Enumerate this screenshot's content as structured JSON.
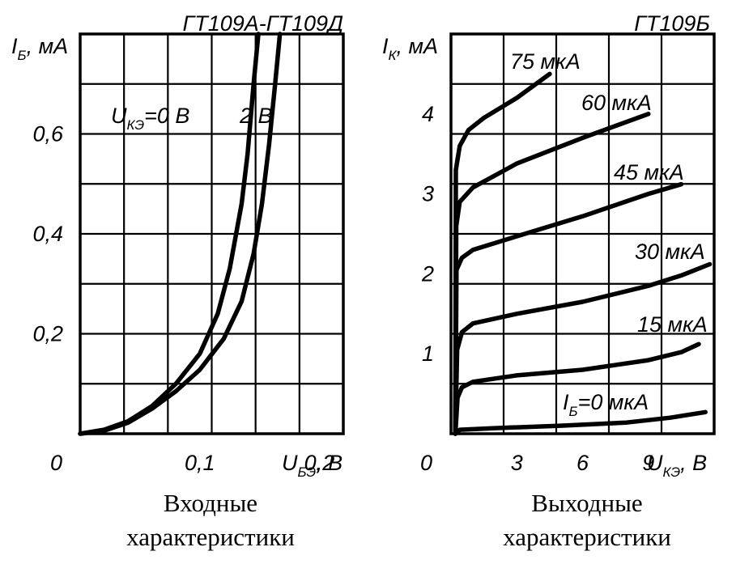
{
  "chart_data": [
    {
      "type": "line",
      "title": "ГТ109А-ГТ109Д",
      "caption": [
        "Входные",
        "характеристики"
      ],
      "ylabel": {
        "main": "I",
        "sub": "Б",
        "unit": ", мА"
      },
      "xlabel": {
        "main": "U",
        "sub": "БЭ",
        "unit": ", В"
      },
      "xlim": [
        0,
        0.22
      ],
      "ylim": [
        0,
        0.8
      ],
      "grid": true,
      "x_ticks": [
        {
          "v": 0,
          "label": "0"
        },
        {
          "v": 0.1,
          "label": "0,1"
        },
        {
          "v": 0.2,
          "label": "0,2"
        }
      ],
      "y_ticks": [
        {
          "v": 0.2,
          "label": "0,2"
        },
        {
          "v": 0.4,
          "label": "0,4"
        },
        {
          "v": 0.6,
          "label": "0,6"
        }
      ],
      "series": [
        {
          "name": "U КЭ = 0 В",
          "points": [
            [
              0,
              0
            ],
            [
              0.02,
              0.008
            ],
            [
              0.04,
              0.025
            ],
            [
              0.06,
              0.055
            ],
            [
              0.08,
              0.1
            ],
            [
              0.1,
              0.16
            ],
            [
              0.115,
              0.24
            ],
            [
              0.125,
              0.33
            ],
            [
              0.135,
              0.46
            ],
            [
              0.14,
              0.56
            ],
            [
              0.145,
              0.7
            ],
            [
              0.149,
              0.8
            ]
          ]
        },
        {
          "name": "2 В",
          "points": [
            [
              0,
              0
            ],
            [
              0.02,
              0.006
            ],
            [
              0.04,
              0.022
            ],
            [
              0.06,
              0.05
            ],
            [
              0.08,
              0.085
            ],
            [
              0.1,
              0.128
            ],
            [
              0.12,
              0.19
            ],
            [
              0.135,
              0.265
            ],
            [
              0.145,
              0.36
            ],
            [
              0.152,
              0.46
            ],
            [
              0.158,
              0.58
            ],
            [
              0.163,
              0.7
            ],
            [
              0.167,
              0.8
            ]
          ]
        }
      ],
      "annotations": [
        {
          "main": "U",
          "sub": "КЭ",
          "text": "=0 В"
        },
        {
          "text": "2 В"
        }
      ]
    },
    {
      "type": "line",
      "title": "ГТ109Б",
      "caption": [
        "Выходные",
        "характеристики"
      ],
      "ylabel": {
        "main": "I",
        "sub": "К",
        "unit": ", мА"
      },
      "xlabel": {
        "main": "U",
        "sub": "КЭ",
        "unit": ", В"
      },
      "xlim": [
        0,
        12
      ],
      "ylim": [
        0,
        5
      ],
      "grid": true,
      "x_ticks": [
        {
          "v": 0,
          "label": "0"
        },
        {
          "v": 3,
          "label": "3"
        },
        {
          "v": 6,
          "label": "6"
        },
        {
          "v": 9,
          "label": "9"
        }
      ],
      "y_ticks": [
        {
          "v": 1,
          "label": "1"
        },
        {
          "v": 2,
          "label": "2"
        },
        {
          "v": 3,
          "label": "3"
        },
        {
          "v": 4,
          "label": "4"
        }
      ],
      "series": [
        {
          "name": "I Б = 0 мкА",
          "points": [
            [
              0.2,
              0
            ],
            [
              0.4,
              0.05
            ],
            [
              2,
              0.07
            ],
            [
              5,
              0.1
            ],
            [
              8,
              0.14
            ],
            [
              10,
              0.2
            ],
            [
              11.6,
              0.27
            ]
          ]
        },
        {
          "name": "15 мкА",
          "points": [
            [
              0.2,
              0
            ],
            [
              0.3,
              0.45
            ],
            [
              0.5,
              0.58
            ],
            [
              1,
              0.65
            ],
            [
              3,
              0.73
            ],
            [
              6,
              0.8
            ],
            [
              9,
              0.92
            ],
            [
              10.5,
              1.02
            ],
            [
              11.3,
              1.12
            ]
          ]
        },
        {
          "name": "30 мкА",
          "points": [
            [
              0.2,
              0
            ],
            [
              0.28,
              1.05
            ],
            [
              0.5,
              1.27
            ],
            [
              1,
              1.38
            ],
            [
              3,
              1.5
            ],
            [
              6,
              1.65
            ],
            [
              9,
              1.85
            ],
            [
              10.5,
              1.98
            ],
            [
              11.8,
              2.12
            ]
          ]
        },
        {
          "name": "45 мкА",
          "points": [
            [
              0.2,
              0
            ],
            [
              0.25,
              2.05
            ],
            [
              0.5,
              2.2
            ],
            [
              1,
              2.3
            ],
            [
              3,
              2.47
            ],
            [
              6,
              2.72
            ],
            [
              9,
              3.0
            ],
            [
              10.5,
              3.12
            ]
          ]
        },
        {
          "name": "60 мкА",
          "points": [
            [
              0.2,
              0
            ],
            [
              0.24,
              2.6
            ],
            [
              0.4,
              2.9
            ],
            [
              1,
              3.08
            ],
            [
              3,
              3.38
            ],
            [
              6,
              3.7
            ],
            [
              9,
              4.0
            ]
          ]
        },
        {
          "name": "75 мкА",
          "points": [
            [
              0.2,
              0
            ],
            [
              0.22,
              3.3
            ],
            [
              0.4,
              3.6
            ],
            [
              0.8,
              3.8
            ],
            [
              1.5,
              3.95
            ],
            [
              3,
              4.2
            ],
            [
              4.5,
              4.5
            ]
          ]
        }
      ],
      "annotations": [
        {
          "text": "75 мкА"
        },
        {
          "text": "60 мкА"
        },
        {
          "text": "45 мкА"
        },
        {
          "text": "30 мкА"
        },
        {
          "text": "15 мкА"
        },
        {
          "main": "I",
          "sub": "Б",
          "text": "=0 мкА"
        }
      ]
    }
  ]
}
